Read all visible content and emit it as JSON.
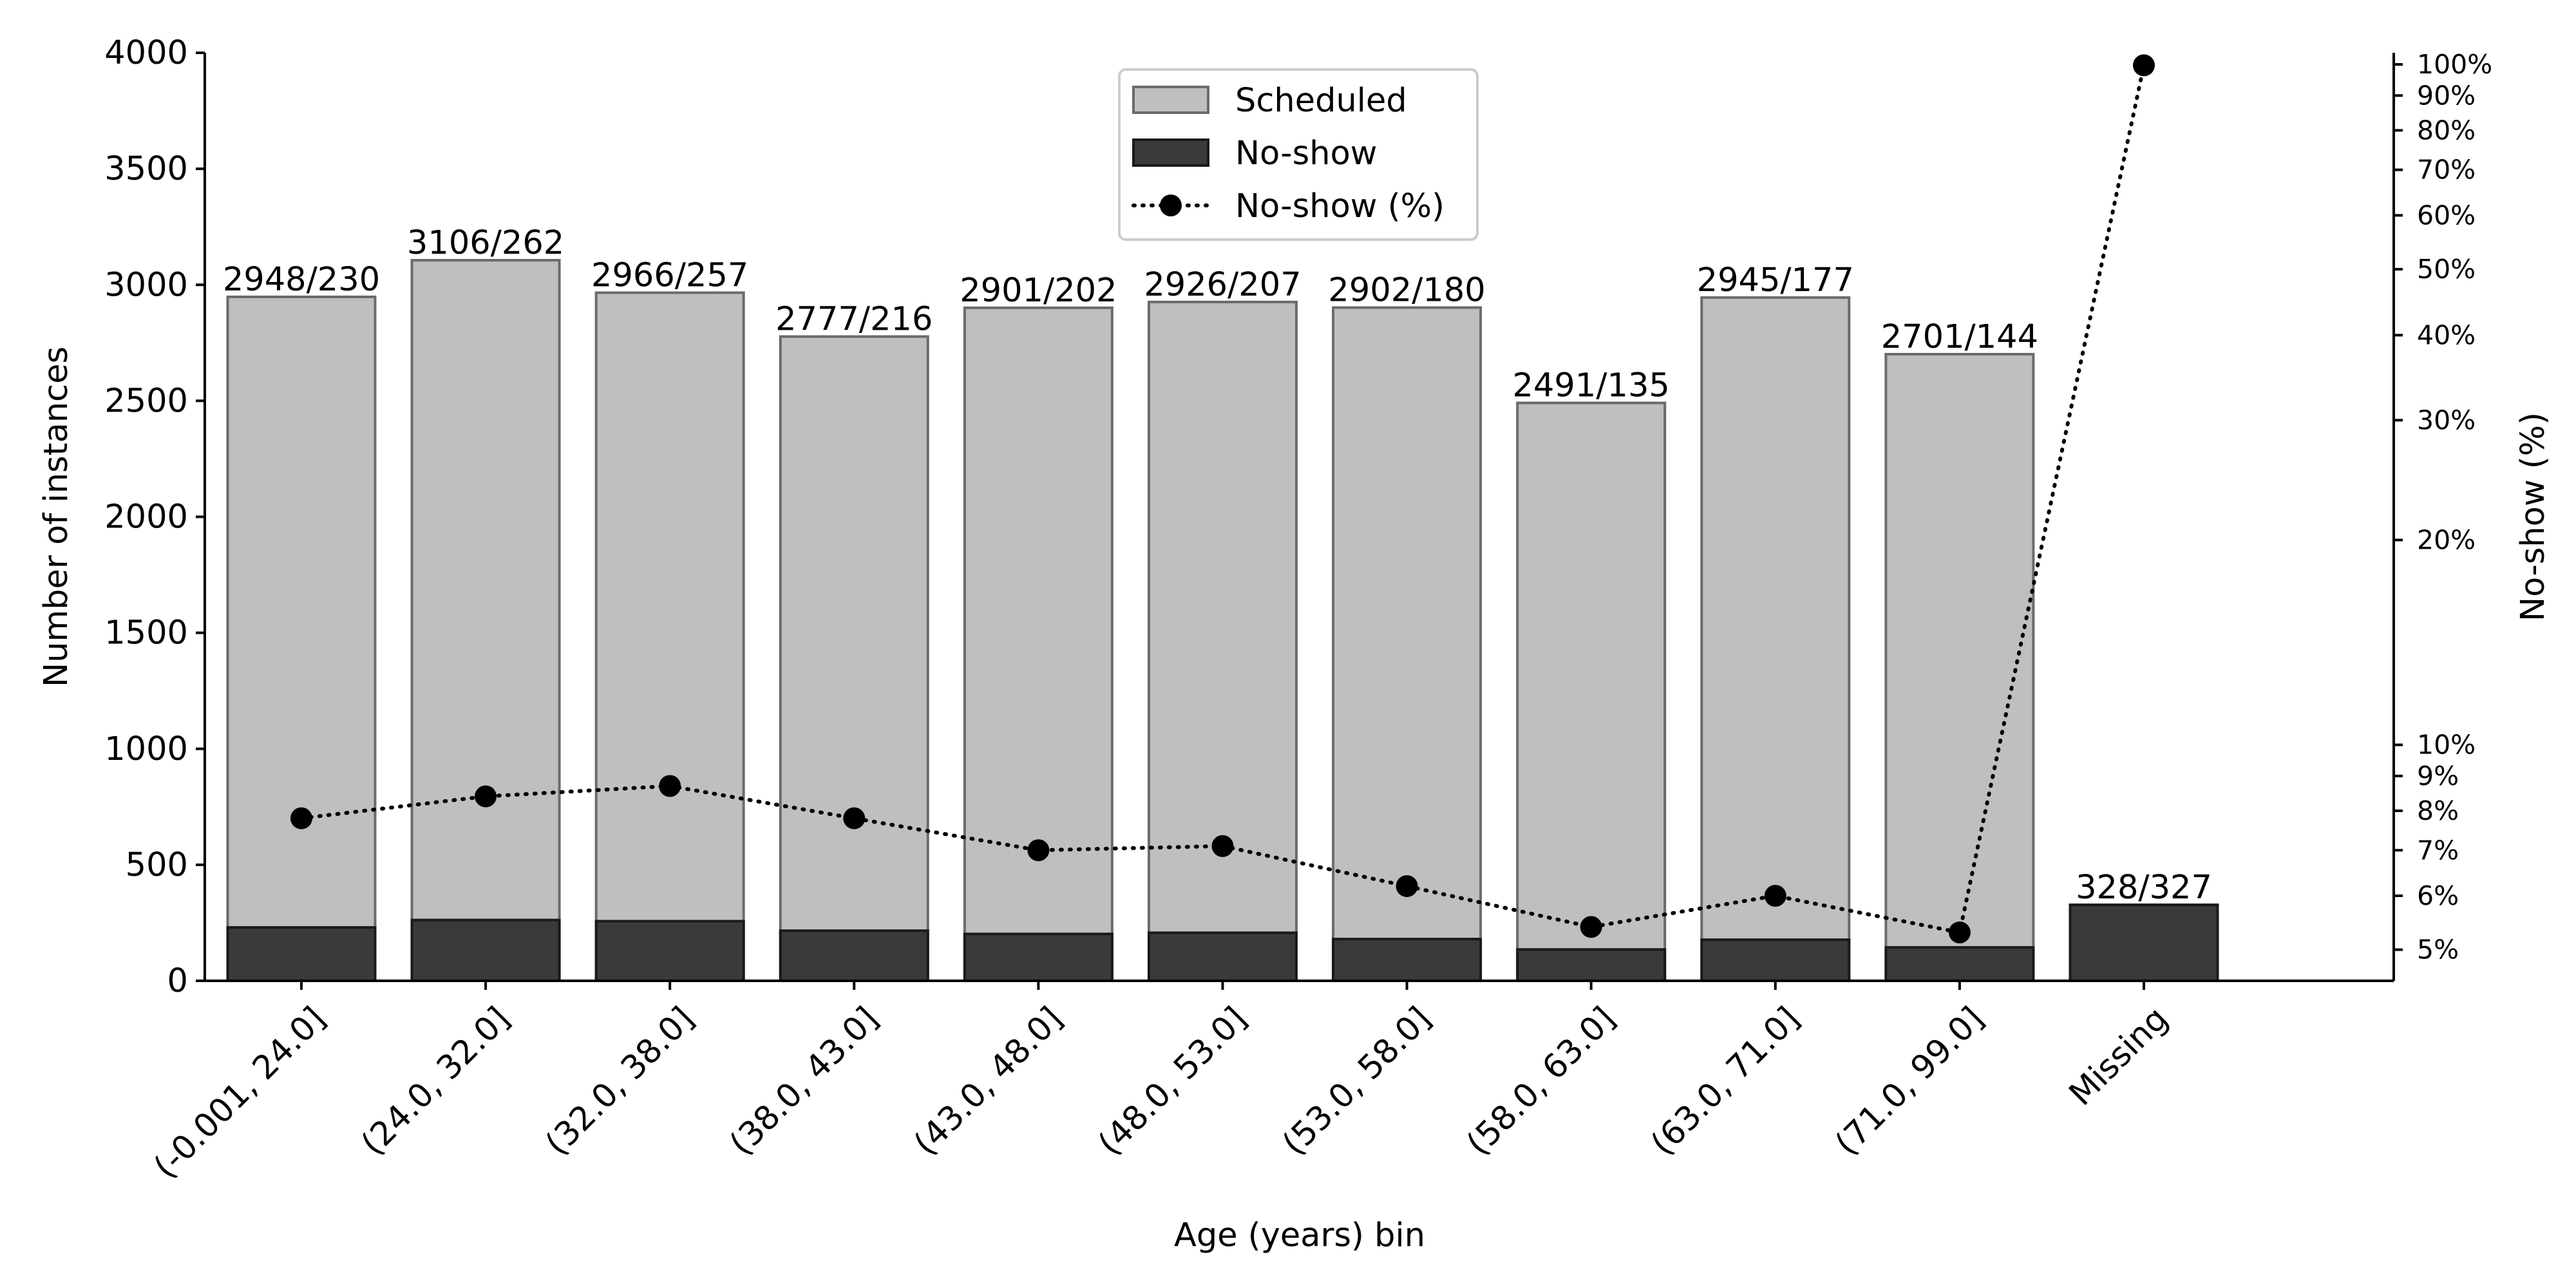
{
  "colors": {
    "scheduled_fill": "#bfbfbf",
    "scheduled_edge": "#6b6b6b",
    "noshow_fill": "#3a3a3a",
    "noshow_edge": "#1a1a1a",
    "line": "#000000"
  },
  "chart_data": {
    "type": "bar",
    "xlabel": "Age (years) bin",
    "ylabel": "Number of instances",
    "y2label": "No-show (%)",
    "ylim": [
      0,
      4000
    ],
    "y_ticks": [
      0,
      500,
      1000,
      1500,
      2000,
      2500,
      3000,
      3500,
      4000
    ],
    "y2_scale": "log",
    "y2lim": [
      4.5,
      104
    ],
    "y2_ticks": [
      {
        "value": 5,
        "label": "5%"
      },
      {
        "value": 6,
        "label": "6%"
      },
      {
        "value": 7,
        "label": "7%"
      },
      {
        "value": 8,
        "label": "8%"
      },
      {
        "value": 9,
        "label": "9%"
      },
      {
        "value": 10,
        "label": "10%"
      },
      {
        "value": 20,
        "label": "20%"
      },
      {
        "value": 30,
        "label": "30%"
      },
      {
        "value": 40,
        "label": "40%"
      },
      {
        "value": 50,
        "label": "50%"
      },
      {
        "value": 60,
        "label": "60%"
      },
      {
        "value": 70,
        "label": "70%"
      },
      {
        "value": 80,
        "label": "80%"
      },
      {
        "value": 90,
        "label": "90%"
      },
      {
        "value": 100,
        "label": "100%"
      }
    ],
    "categories": [
      "(-0.001, 24.0]",
      "(24.0, 32.0]",
      "(32.0, 38.0]",
      "(38.0, 43.0]",
      "(43.0, 48.0]",
      "(48.0, 53.0]",
      "(53.0, 58.0]",
      "(58.0, 63.0]",
      "(63.0, 71.0]",
      "(71.0, 99.0]",
      "Missing"
    ],
    "series": [
      {
        "name": "Scheduled",
        "type": "bar",
        "axis": "left",
        "values": [
          2948,
          3106,
          2966,
          2777,
          2901,
          2926,
          2902,
          2491,
          2945,
          2701,
          328
        ]
      },
      {
        "name": "No-show",
        "type": "bar",
        "axis": "left",
        "values": [
          230,
          262,
          257,
          216,
          202,
          207,
          180,
          135,
          177,
          144,
          327
        ]
      },
      {
        "name": "No-show (%)",
        "type": "line",
        "axis": "right",
        "style": "dotted",
        "values": [
          7.8,
          8.4,
          8.7,
          7.8,
          7.0,
          7.1,
          6.2,
          5.4,
          6.0,
          5.3,
          99.7
        ]
      }
    ],
    "bar_labels": [
      "2948/230",
      "3106/262",
      "2966/257",
      "2777/216",
      "2901/202",
      "2926/207",
      "2902/180",
      "2491/135",
      "2945/177",
      "2701/144",
      "328/327"
    ],
    "legend": {
      "position": "top-center",
      "entries": [
        "Scheduled",
        "No-show",
        "No-show (%)"
      ]
    },
    "grid": false
  }
}
